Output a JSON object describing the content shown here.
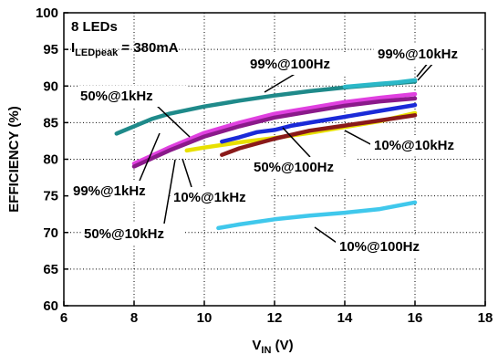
{
  "chart_data": {
    "type": "line",
    "xlabel": {
      "main": "V",
      "sub": "IN",
      "suffix": " (V)"
    },
    "ylabel": "EFFICIENCY (%)",
    "xlim": [
      6,
      18
    ],
    "ylim": [
      60,
      100
    ],
    "x_ticks": [
      6,
      8,
      10,
      12,
      14,
      16,
      18
    ],
    "y_ticks": [
      60,
      65,
      70,
      75,
      80,
      85,
      90,
      95,
      100
    ],
    "grid": true,
    "info": {
      "line1": "8 LEDs",
      "line2": {
        "main": "I",
        "sub": "LEDpeak",
        "suffix": " = 380mA"
      }
    },
    "series": [
      {
        "name": "99%@100Hz",
        "color": "#1f8a8a",
        "x": [
          7.5,
          8,
          8.5,
          9,
          10,
          11,
          12,
          13,
          14,
          15,
          16
        ],
        "y": [
          83.5,
          84.5,
          85.5,
          86.2,
          87.2,
          88.0,
          88.7,
          89.3,
          89.8,
          90.2,
          90.6
        ]
      },
      {
        "name": "99%@10kHz",
        "color": "#2bb8c8",
        "x": [
          14,
          15,
          15.5,
          16
        ],
        "y": [
          89.9,
          90.3,
          90.5,
          90.8
        ]
      },
      {
        "name": "50%@1kHz",
        "color": "#e040e0",
        "x": [
          8,
          8.5,
          9,
          10,
          11,
          12,
          13,
          14,
          15,
          16
        ],
        "y": [
          79.4,
          80.5,
          81.6,
          83.6,
          85.0,
          86.2,
          87.0,
          87.8,
          88.4,
          88.9
        ]
      },
      {
        "name": "99%@1kHz",
        "color": "#8a1a8a",
        "x": [
          8,
          8.5,
          9,
          10,
          11,
          12,
          13,
          14,
          15,
          16
        ],
        "y": [
          79.0,
          80.1,
          81.2,
          83.1,
          84.5,
          85.7,
          86.5,
          87.3,
          87.9,
          88.3
        ]
      },
      {
        "name": "50%@100Hz",
        "color": "#e8e000",
        "x": [
          9.5,
          10,
          11,
          12,
          13,
          14,
          15,
          16
        ],
        "y": [
          81.2,
          81.6,
          82.3,
          82.9,
          83.6,
          84.4,
          85.2,
          86.3
        ]
      },
      {
        "name": "50%@10kHz",
        "color": "#1a2ad8",
        "x": [
          10.5,
          11,
          11.5,
          12,
          12.5,
          13,
          14,
          15,
          16
        ],
        "y": [
          82.4,
          83.0,
          83.7,
          84.0,
          84.6,
          85.0,
          85.8,
          86.6,
          87.4
        ]
      },
      {
        "name": "10%@10kHz",
        "color": "#8a1a1a",
        "x": [
          10.5,
          11,
          12,
          13,
          14,
          15,
          16
        ],
        "y": [
          80.6,
          81.5,
          82.8,
          83.9,
          84.6,
          85.3,
          86.0
        ]
      },
      {
        "name": "10%@100Hz",
        "color": "#40c8ec",
        "x": [
          10.4,
          11,
          12,
          13,
          14,
          15,
          16
        ],
        "y": [
          70.6,
          71.1,
          71.8,
          72.3,
          72.7,
          73.2,
          74.1
        ]
      }
    ],
    "annotations": [
      {
        "text": "99%@10kHz"
      },
      {
        "text": "99%@100Hz"
      },
      {
        "text": "50%@1kHz"
      },
      {
        "text": "99%@1kHz"
      },
      {
        "text": "10%@1kHz"
      },
      {
        "text": "50%@10kHz"
      },
      {
        "text": "50%@100Hz"
      },
      {
        "text": "10%@10kHz"
      },
      {
        "text": "10%@100Hz"
      }
    ]
  }
}
